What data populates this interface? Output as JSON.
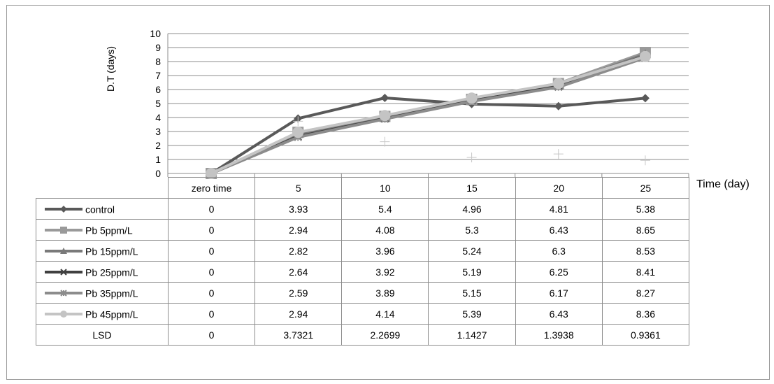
{
  "chart_data": {
    "type": "line",
    "ylabel": "D.T (days)",
    "xlabel": "Time (day)",
    "categories": [
      "zero time",
      "5",
      "10",
      "15",
      "20",
      "25"
    ],
    "ylim": [
      0,
      10
    ],
    "yticks": [
      0,
      1,
      2,
      3,
      4,
      5,
      6,
      7,
      8,
      9,
      10
    ],
    "grid": "horizontal",
    "legend": "data-table",
    "series": [
      {
        "name": "control",
        "values": [
          0,
          3.93,
          5.4,
          4.96,
          4.81,
          5.38
        ],
        "color": "#595959",
        "marker": "diamond"
      },
      {
        "name": "Pb 5ppm/L",
        "values": [
          0,
          2.94,
          4.08,
          5.3,
          6.43,
          8.65
        ],
        "color": "#9a9a9a",
        "marker": "square"
      },
      {
        "name": "Pb 15ppm/L",
        "values": [
          0,
          2.82,
          3.96,
          5.24,
          6.3,
          8.53
        ],
        "color": "#7a7a7a",
        "marker": "triangle"
      },
      {
        "name": "Pb 25ppm/L",
        "values": [
          0,
          2.64,
          3.92,
          5.19,
          6.25,
          8.41
        ],
        "color": "#404040",
        "marker": "x"
      },
      {
        "name": "Pb 35ppm/L",
        "values": [
          0,
          2.59,
          3.89,
          5.15,
          6.17,
          8.27
        ],
        "color": "#8c8c8c",
        "marker": "star"
      },
      {
        "name": "Pb 45ppm/L",
        "values": [
          0,
          2.94,
          4.14,
          5.39,
          6.43,
          8.36
        ],
        "color": "#c4c4c4",
        "marker": "circle"
      }
    ],
    "lsd": {
      "name": "LSD",
      "values": [
        "0",
        "3.7321",
        "2.2699",
        "1.1427",
        "1.3938",
        "0.9361"
      ],
      "color": "#c8c8c8",
      "marker": "plus"
    }
  }
}
